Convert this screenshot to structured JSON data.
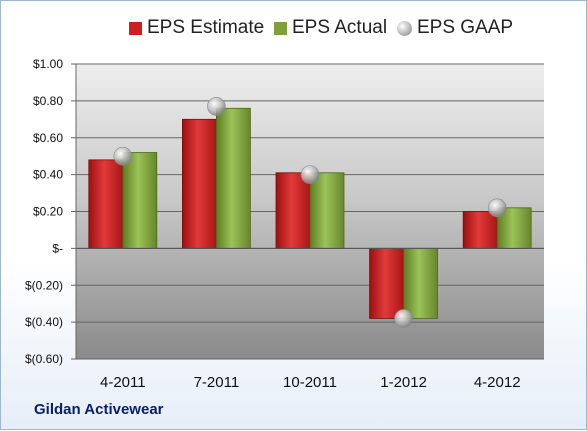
{
  "company": "Gildan Activewear",
  "chart_data": {
    "type": "bar",
    "categories": [
      "4-2011",
      "7-2011",
      "10-2011",
      "1-2012",
      "4-2012"
    ],
    "series": [
      {
        "name": "EPS Estimate",
        "values": [
          0.48,
          0.7,
          0.41,
          -0.38,
          0.2
        ],
        "color": "#cc1f1f"
      },
      {
        "name": "EPS Actual",
        "values": [
          0.52,
          0.76,
          0.41,
          -0.38,
          0.22
        ],
        "color": "#7fa03a"
      },
      {
        "name": "EPS GAAP",
        "values": [
          0.5,
          0.77,
          0.4,
          -0.38,
          0.22
        ],
        "color": "#b8b8b8",
        "marker": "sphere"
      }
    ],
    "ylim": [
      -0.6,
      1.0
    ],
    "yticks": [
      1.0,
      0.8,
      0.6,
      0.4,
      0.2,
      0,
      -0.2,
      -0.4,
      -0.6
    ],
    "ytick_labels": [
      "$1.00",
      "$0.80",
      "$0.60",
      "$0.40",
      "$0.20",
      "$-",
      "$(0.20)",
      "$(0.40)",
      "$(0.60)"
    ],
    "grid": true,
    "legend_position": "top"
  }
}
